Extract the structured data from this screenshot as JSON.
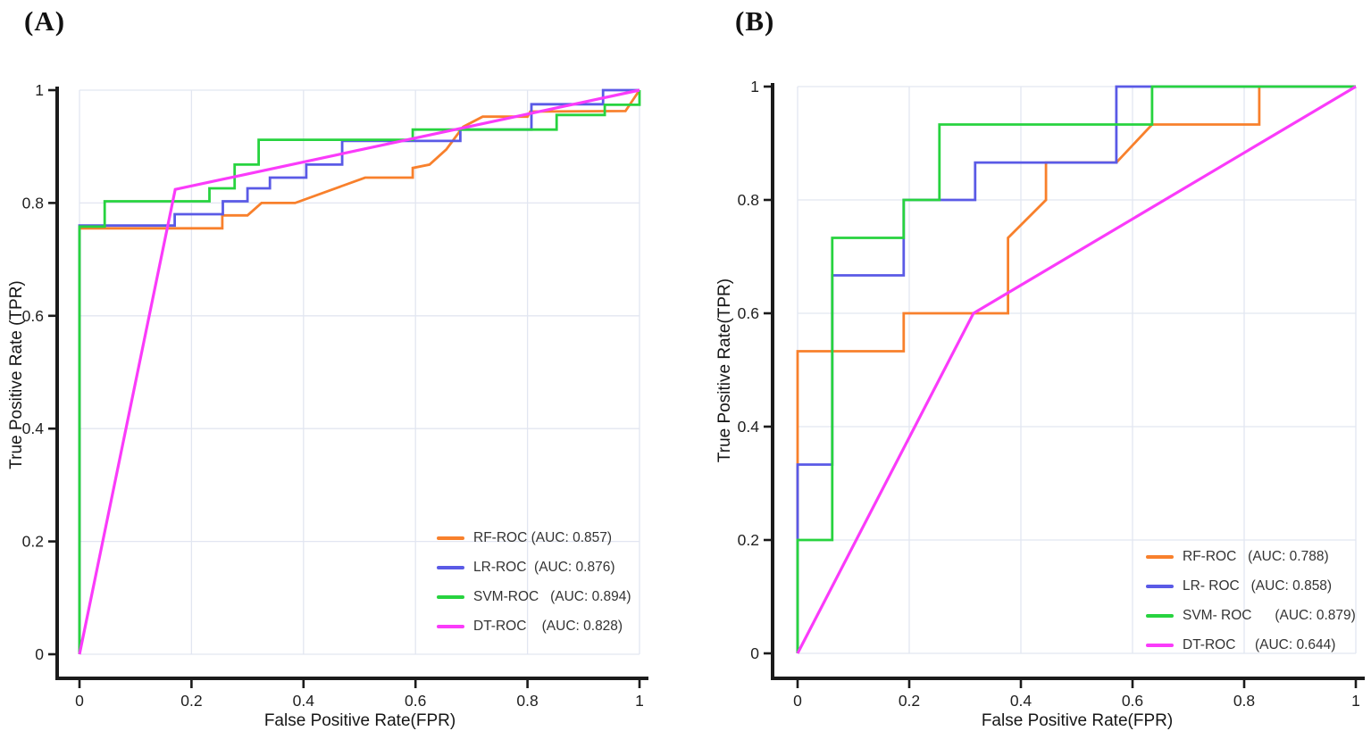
{
  "figure": {
    "background": "#ffffff",
    "axis_color": "#1b1b1b",
    "gridline_color": "#e2e6f1",
    "tick_text_color": "#1f1f1f",
    "legend_text_color": "#333333"
  },
  "chart_data": [
    {
      "type": "line",
      "title": "(A)",
      "xlabel": "False Positive Rate(FPR)",
      "ylabel": "True Positive Rate (TPR)",
      "xlim": [
        0,
        1
      ],
      "ylim": [
        0,
        1
      ],
      "x_ticks": [
        0,
        0.2,
        0.4,
        0.6,
        0.8,
        1
      ],
      "x_tick_labels": [
        "0",
        "0.2",
        "0.4",
        "0.6",
        "0.8",
        "1"
      ],
      "y_ticks": [
        0,
        0.2,
        0.4,
        0.6,
        0.8,
        1
      ],
      "y_tick_labels": [
        "0",
        "0.2",
        "0.4",
        "0.6",
        "0.8",
        "1"
      ],
      "grid": true,
      "legend_position": "lower right",
      "series": [
        {
          "name": "RF-ROC",
          "auc": 0.857,
          "legend_label": "RF-ROC (AUC: 0.857)",
          "color": "#f8802c",
          "points": [
            [
              0,
              0
            ],
            [
              0,
              0.755
            ],
            [
              0.255,
              0.755
            ],
            [
              0.255,
              0.778
            ],
            [
              0.3,
              0.778
            ],
            [
              0.325,
              0.8
            ],
            [
              0.385,
              0.8
            ],
            [
              0.51,
              0.845
            ],
            [
              0.595,
              0.845
            ],
            [
              0.595,
              0.862
            ],
            [
              0.625,
              0.868
            ],
            [
              0.655,
              0.895
            ],
            [
              0.685,
              0.935
            ],
            [
              0.72,
              0.953
            ],
            [
              0.8,
              0.953
            ],
            [
              0.805,
              0.962
            ],
            [
              0.975,
              0.963
            ],
            [
              1,
              1
            ]
          ]
        },
        {
          "name": "LR-ROC",
          "auc": 0.876,
          "legend_label": "LR-ROC  (AUC: 0.876)",
          "color": "#5a5ae6",
          "points": [
            [
              0,
              0
            ],
            [
              0,
              0.76
            ],
            [
              0.17,
              0.76
            ],
            [
              0.17,
              0.78
            ],
            [
              0.256,
              0.78
            ],
            [
              0.256,
              0.803
            ],
            [
              0.3,
              0.803
            ],
            [
              0.3,
              0.826
            ],
            [
              0.34,
              0.826
            ],
            [
              0.34,
              0.845
            ],
            [
              0.405,
              0.845
            ],
            [
              0.405,
              0.868
            ],
            [
              0.469,
              0.868
            ],
            [
              0.469,
              0.91
            ],
            [
              0.68,
              0.91
            ],
            [
              0.68,
              0.93
            ],
            [
              0.807,
              0.93
            ],
            [
              0.807,
              0.975
            ],
            [
              0.935,
              0.975
            ],
            [
              0.935,
              1
            ],
            [
              1,
              1
            ]
          ]
        },
        {
          "name": "SVM-ROC",
          "auc": 0.894,
          "legend_label": "SVM-ROC   (AUC: 0.894)",
          "color": "#27d33f",
          "points": [
            [
              0,
              0
            ],
            [
              0,
              0.758
            ],
            [
              0.045,
              0.758
            ],
            [
              0.045,
              0.803
            ],
            [
              0.232,
              0.803
            ],
            [
              0.232,
              0.826
            ],
            [
              0.277,
              0.826
            ],
            [
              0.277,
              0.868
            ],
            [
              0.32,
              0.868
            ],
            [
              0.32,
              0.912
            ],
            [
              0.595,
              0.912
            ],
            [
              0.595,
              0.93
            ],
            [
              0.852,
              0.93
            ],
            [
              0.852,
              0.956
            ],
            [
              0.938,
              0.956
            ],
            [
              0.938,
              0.974
            ],
            [
              1,
              0.974
            ],
            [
              1,
              1
            ]
          ]
        },
        {
          "name": "DT-ROC",
          "auc": 0.828,
          "legend_label": "DT-ROC    (AUC: 0.828)",
          "color": "#fa3bfa",
          "points": [
            [
              0,
              0
            ],
            [
              0.171,
              0.824
            ],
            [
              1,
              1
            ]
          ]
        }
      ]
    },
    {
      "type": "line",
      "title": "(B)",
      "xlabel": "False Positive Rate(FPR)",
      "ylabel": "True Positive Rate(TPR)",
      "xlim": [
        0,
        1
      ],
      "ylim": [
        0,
        1
      ],
      "x_ticks": [
        0,
        0.2,
        0.4,
        0.6,
        0.8,
        1
      ],
      "x_tick_labels": [
        "0",
        "0.2",
        "0.4",
        "0.6",
        "0.8",
        "1"
      ],
      "y_ticks": [
        0,
        0.2,
        0.4,
        0.6,
        0.8,
        1
      ],
      "y_tick_labels": [
        "0",
        "0.2",
        "0.4",
        "0.6",
        "0.8",
        "1"
      ],
      "grid": true,
      "legend_position": "lower right",
      "series": [
        {
          "name": "RF-ROC",
          "auc": 0.788,
          "legend_label": "RF-ROC   (AUC: 0.788)",
          "color": "#f8802c",
          "points": [
            [
              0,
              0
            ],
            [
              0,
              0.533
            ],
            [
              0.19,
              0.533
            ],
            [
              0.19,
              0.6
            ],
            [
              0.377,
              0.6
            ],
            [
              0.377,
              0.733
            ],
            [
              0.445,
              0.8
            ],
            [
              0.445,
              0.866
            ],
            [
              0.571,
              0.866
            ],
            [
              0.635,
              0.933
            ],
            [
              0.827,
              0.933
            ],
            [
              0.827,
              1
            ],
            [
              1,
              1
            ]
          ]
        },
        {
          "name": "LR- ROC",
          "auc": 0.858,
          "legend_label": "LR- ROC   (AUC: 0.858)",
          "color": "#5a5ae6",
          "points": [
            [
              0,
              0
            ],
            [
              0,
              0.333
            ],
            [
              0.062,
              0.333
            ],
            [
              0.062,
              0.667
            ],
            [
              0.19,
              0.667
            ],
            [
              0.19,
              0.8
            ],
            [
              0.318,
              0.8
            ],
            [
              0.318,
              0.866
            ],
            [
              0.571,
              0.866
            ],
            [
              0.571,
              1
            ],
            [
              1,
              1
            ]
          ]
        },
        {
          "name": "SVM- ROC",
          "auc": 0.879,
          "legend_label": "SVM- ROC      (AUC: 0.879)",
          "color": "#27d33f",
          "points": [
            [
              0,
              0
            ],
            [
              0,
              0.2
            ],
            [
              0.062,
              0.2
            ],
            [
              0.062,
              0.733
            ],
            [
              0.19,
              0.733
            ],
            [
              0.19,
              0.8
            ],
            [
              0.254,
              0.8
            ],
            [
              0.254,
              0.933
            ],
            [
              0.635,
              0.933
            ],
            [
              0.635,
              1
            ],
            [
              1,
              1
            ]
          ]
        },
        {
          "name": "DT-ROC",
          "auc": 0.644,
          "legend_label": "DT-ROC     (AUC: 0.644)",
          "color": "#fa3bfa",
          "points": [
            [
              0,
              0
            ],
            [
              0.315,
              0.6
            ],
            [
              1,
              1
            ]
          ]
        }
      ]
    }
  ]
}
